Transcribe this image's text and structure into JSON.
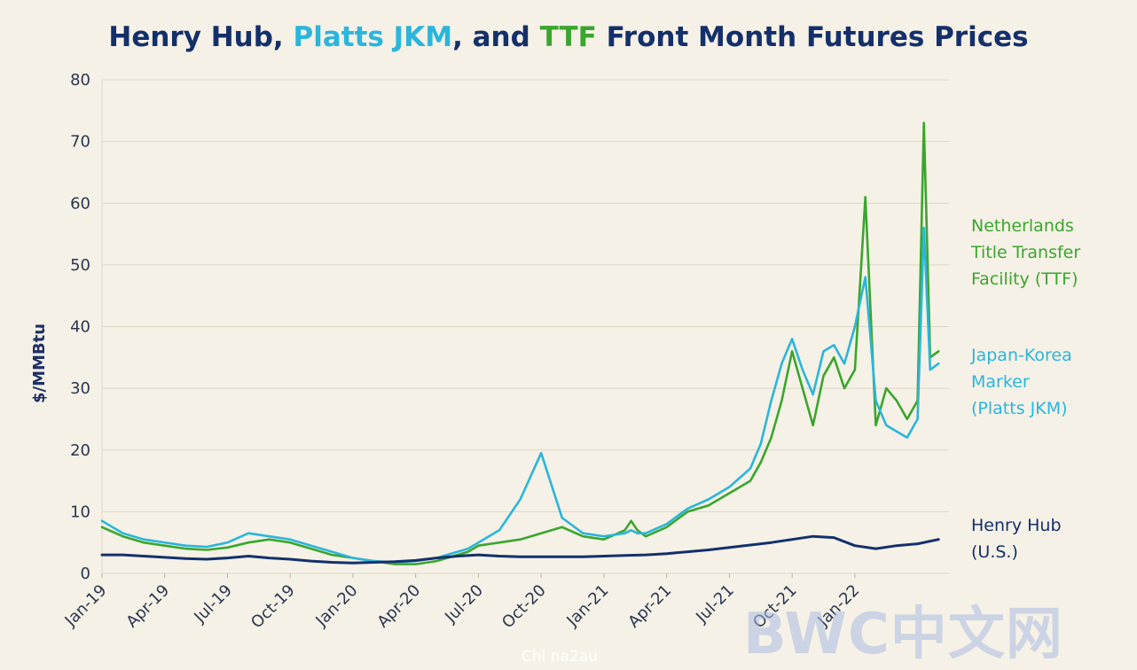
{
  "title": {
    "part1": "Henry Hub, ",
    "part2": "Platts JKM",
    "part3": ", and ",
    "part4": "TTF",
    "part5": " Front Month Futures Prices"
  },
  "colors": {
    "henry_hub": "#14306b",
    "jkm": "#2bb5dc",
    "ttf": "#3aa62c",
    "grid": "#ddd6c4",
    "background": "#f5f1e6"
  },
  "series_labels": {
    "ttf": [
      "Netherlands",
      "Title Transfer",
      "Facility (TTF)"
    ],
    "jkm": [
      "Japan-Korea",
      "Marker",
      "(Platts JKM)"
    ],
    "henry_hub": [
      "Henry Hub",
      "(U.S.)"
    ]
  },
  "watermark": "BWC中文网",
  "credit": "Chi na2au",
  "chart_data": {
    "type": "line",
    "title": "Henry Hub, Platts JKM, and TTF Front Month Futures Prices",
    "xlabel": "",
    "ylabel": "$/MMBtu",
    "ylim": [
      0,
      80
    ],
    "yticks": [
      0,
      10,
      20,
      30,
      40,
      50,
      60,
      70,
      80
    ],
    "xlim": [
      0,
      40.5
    ],
    "xtick_labels": [
      "Jan-19",
      "Apr-19",
      "Jul-19",
      "Oct-19",
      "Jan-20",
      "Apr-20",
      "Jul-20",
      "Oct-20",
      "Jan-21",
      "Apr-21",
      "Jul-21",
      "Oct-21",
      "Jan-22"
    ],
    "grid": true,
    "legend": "direct labels at right",
    "series": [
      {
        "name": "Netherlands Title Transfer Facility (TTF)",
        "key": "ttf",
        "x": [
          0,
          1,
          2,
          3,
          4,
          5,
          6,
          7,
          8,
          9,
          10,
          11,
          12,
          13,
          14,
          15,
          16,
          17,
          17.5,
          18,
          19,
          20,
          21,
          22,
          23,
          24,
          25,
          25.3,
          25.6,
          26,
          27,
          28,
          29,
          30,
          31,
          31.5,
          32,
          32.5,
          33,
          33.5,
          34,
          34.5,
          35,
          35.5,
          36,
          36.5,
          37,
          37.5,
          38,
          38.5,
          39,
          39.3,
          39.6,
          40
        ],
        "y": [
          7.5,
          6,
          5,
          4.5,
          4,
          3.8,
          4.2,
          5,
          5.5,
          5,
          4,
          3,
          2.5,
          2,
          1.5,
          1.5,
          2,
          3,
          3.5,
          4.5,
          5,
          5.5,
          6.5,
          7.5,
          6,
          5.5,
          7,
          8.5,
          7,
          6,
          7.5,
          10,
          11,
          13,
          15,
          18,
          22,
          28,
          36,
          30,
          24,
          32,
          35,
          30,
          33,
          61,
          24,
          30,
          28,
          25,
          28,
          73,
          35,
          36
        ]
      },
      {
        "name": "Japan-Korea Marker (Platts JKM)",
        "key": "jkm",
        "x": [
          0,
          1,
          2,
          3,
          4,
          5,
          6,
          7,
          8,
          9,
          10,
          11,
          12,
          13,
          14,
          15,
          16,
          17,
          17.5,
          18,
          19,
          20,
          21,
          22,
          23,
          24,
          25,
          25.3,
          25.6,
          26,
          27,
          28,
          29,
          30,
          31,
          31.5,
          32,
          32.5,
          33,
          33.5,
          34,
          34.5,
          35,
          35.5,
          36,
          36.5,
          37,
          37.5,
          38,
          38.5,
          39,
          39.3,
          39.6,
          40
        ],
        "y": [
          8.5,
          6.5,
          5.5,
          5,
          4.5,
          4.3,
          5,
          6.5,
          6,
          5.5,
          4.5,
          3.5,
          2.5,
          2,
          1.8,
          2,
          2.5,
          3.5,
          4,
          5,
          7,
          12,
          19.5,
          9,
          6.5,
          6,
          6.5,
          7,
          6.5,
          6.5,
          8,
          10.5,
          12,
          14,
          17,
          21,
          28,
          34,
          38,
          33,
          29,
          36,
          37,
          34,
          40,
          48,
          28,
          24,
          23,
          22,
          25,
          56,
          33,
          34
        ]
      },
      {
        "name": "Henry Hub (U.S.)",
        "key": "henry_hub",
        "x": [
          0,
          1,
          2,
          3,
          4,
          5,
          6,
          7,
          8,
          9,
          10,
          11,
          12,
          13,
          14,
          15,
          16,
          17,
          18,
          19,
          20,
          21,
          22,
          23,
          24,
          25,
          26,
          27,
          28,
          29,
          30,
          31,
          32,
          33,
          34,
          35,
          36,
          37,
          38,
          39,
          40
        ],
        "y": [
          3,
          3,
          2.8,
          2.6,
          2.4,
          2.3,
          2.5,
          2.8,
          2.5,
          2.3,
          2,
          1.8,
          1.7,
          1.8,
          1.9,
          2.1,
          2.5,
          2.8,
          3,
          2.8,
          2.7,
          2.7,
          2.7,
          2.7,
          2.8,
          2.9,
          3,
          3.2,
          3.5,
          3.8,
          4.2,
          4.6,
          5,
          5.5,
          6,
          5.8,
          4.5,
          4,
          4.5,
          4.8,
          5.5
        ]
      }
    ]
  }
}
